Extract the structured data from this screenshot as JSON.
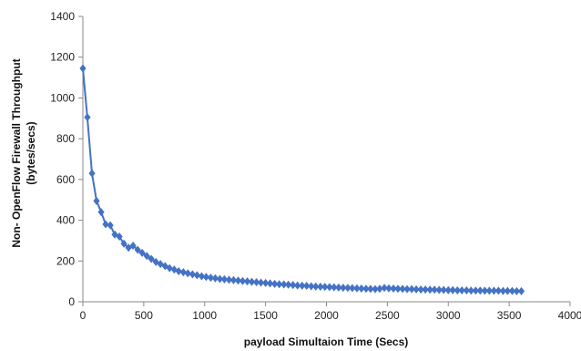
{
  "chart_data": {
    "type": "line",
    "title": "",
    "xlabel": "payload Simultaion Time (Secs)",
    "ylabel_line1": "Non- OpenFlow Firewall  Throughput",
    "ylabel_line2": "(bytes/secs)",
    "xlim": [
      0,
      4000
    ],
    "ylim": [
      0,
      1400
    ],
    "x_ticks": [
      "0",
      "500",
      "1000",
      "1500",
      "2000",
      "2500",
      "3000",
      "3500",
      "4000"
    ],
    "y_ticks": [
      "0",
      "200",
      "400",
      "600",
      "800",
      "1000",
      "1200",
      "1400"
    ],
    "grid": false,
    "legend": "none",
    "series_color": "#4472c4",
    "marker": "diamond",
    "series": [
      {
        "x": [
          0,
          37,
          75,
          112,
          150,
          187,
          225,
          262,
          300,
          337,
          375,
          412,
          450,
          487,
          525,
          562,
          600,
          637,
          675,
          712,
          750,
          787,
          825,
          862,
          900,
          937,
          975,
          1012,
          1050,
          1087,
          1125,
          1162,
          1200,
          1237,
          1275,
          1312,
          1350,
          1387,
          1425,
          1462,
          1500,
          1537,
          1575,
          1612,
          1650,
          1687,
          1725,
          1762,
          1800,
          1837,
          1875,
          1912,
          1950,
          1987,
          2025,
          2062,
          2100,
          2137,
          2175,
          2212,
          2250,
          2287,
          2325,
          2362,
          2400,
          2437,
          2475,
          2512,
          2550,
          2587,
          2625,
          2662,
          2700,
          2737,
          2775,
          2812,
          2850,
          2887,
          2925,
          2962,
          3000,
          3037,
          3075,
          3112,
          3150,
          3187,
          3225,
          3262,
          3300,
          3337,
          3375,
          3412,
          3450,
          3487,
          3525,
          3562,
          3600
        ],
        "y": [
          1145,
          905,
          630,
          495,
          440,
          380,
          375,
          330,
          320,
          285,
          265,
          275,
          255,
          240,
          225,
          210,
          195,
          185,
          175,
          165,
          158,
          150,
          145,
          140,
          135,
          130,
          125,
          122,
          118,
          115,
          112,
          110,
          108,
          106,
          104,
          102,
          100,
          98,
          96,
          94,
          92,
          90,
          88,
          86,
          85,
          84,
          82,
          80,
          79,
          78,
          76,
          75,
          74,
          73,
          72,
          71,
          70,
          69,
          68,
          67,
          66,
          65,
          64,
          63,
          62,
          64,
          68,
          66,
          65,
          64,
          63,
          62,
          62,
          61,
          60,
          60,
          59,
          59,
          58,
          58,
          57,
          57,
          56,
          56,
          56,
          55,
          55,
          55,
          54,
          54,
          54,
          54,
          53,
          53,
          53,
          52,
          52
        ]
      }
    ]
  }
}
